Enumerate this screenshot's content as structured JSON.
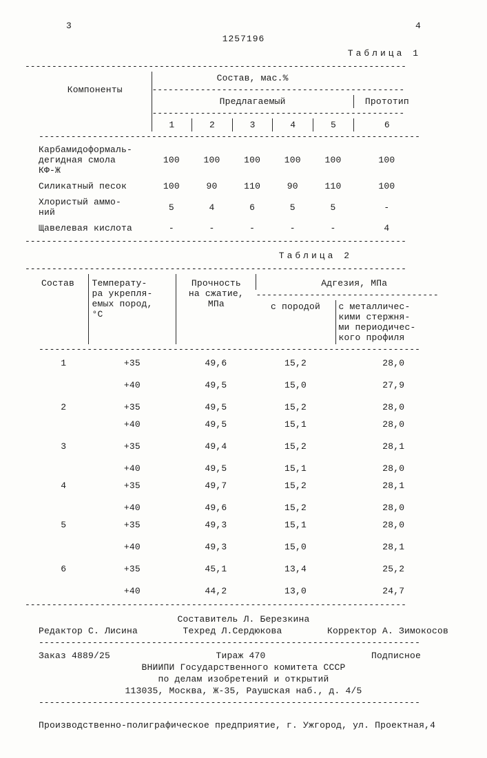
{
  "page_left": "3",
  "page_right": "4",
  "doc_number": "1257196",
  "table1": {
    "caption": "Таблица 1",
    "components_label": "Компоненты",
    "composition_label": "Состав, мас.%",
    "proposed_label": "Предлагаемый",
    "prototype_label": "Прототип",
    "col_nums": [
      "1",
      "2",
      "3",
      "4",
      "5",
      "6"
    ],
    "rows": [
      {
        "label": "Карбамидоформаль-\nдегидная смола\nКФ-Ж",
        "v": [
          "100",
          "100",
          "100",
          "100",
          "100",
          "100"
        ]
      },
      {
        "label": "Силикатный песок",
        "v": [
          "100",
          "90",
          "110",
          "90",
          "110",
          "100"
        ]
      },
      {
        "label": "Хлористый аммо-\nний",
        "v": [
          "5",
          "4",
          "6",
          "5",
          "5",
          "-"
        ]
      },
      {
        "label": "Щавелевая кислота",
        "v": [
          "-",
          "-",
          "-",
          "-",
          "-",
          "4"
        ]
      }
    ]
  },
  "table2": {
    "caption": "Таблица 2",
    "h_sostav": "Состав",
    "h_temp": "Температу-\nра укрепля-\nемых пород,\n°С",
    "h_proch": "Прочность\nна сжатие,\nМПа",
    "h_adg": "Адгезия, МПа",
    "h_adg_a": "с породой",
    "h_adg_b": "с металличес-\nкими стержня-\nми периодичес-\nкого профиля",
    "rows": [
      {
        "n": "1",
        "t": "+35",
        "p": "49,6",
        "a": "15,2",
        "b": "28,0"
      },
      {
        "n": "",
        "t": "+40",
        "p": "49,5",
        "a": "15,0",
        "b": "27,9",
        "gap": true
      },
      {
        "n": "2",
        "t": "+35",
        "p": "49,5",
        "a": "15,2",
        "b": "28,0",
        "gap": true
      },
      {
        "n": "",
        "t": "+40",
        "p": "49,5",
        "a": "15,1",
        "b": "28,0"
      },
      {
        "n": "3",
        "t": "+35",
        "p": "49,4",
        "a": "15,2",
        "b": "28,1",
        "gap": true
      },
      {
        "n": "",
        "t": "+40",
        "p": "49,5",
        "a": "15,1",
        "b": "28,0",
        "gap": true
      },
      {
        "n": "4",
        "t": "+35",
        "p": "49,7",
        "a": "15,2",
        "b": "28,1"
      },
      {
        "n": "",
        "t": "+40",
        "p": "49,6",
        "a": "15,2",
        "b": "28,0",
        "gap": true
      },
      {
        "n": "5",
        "t": "+35",
        "p": "49,3",
        "a": "15,1",
        "b": "28,0"
      },
      {
        "n": "",
        "t": "+40",
        "p": "49,3",
        "a": "15,0",
        "b": "28,1",
        "gap": true
      },
      {
        "n": "6",
        "t": "+35",
        "p": "45,1",
        "a": "13,4",
        "b": "25,2",
        "gap": true
      },
      {
        "n": "",
        "t": "+40",
        "p": "44,2",
        "a": "13,0",
        "b": "24,7",
        "gap": true
      }
    ]
  },
  "footer": {
    "sostavitel": "Составитель Л. Березкина",
    "left": "Редактор С. Лисина",
    "mid": "Техред Л.Сердюкова",
    "right": "Корректор А. Зимокосов",
    "zakaz": "Заказ 4889/25",
    "tirazh": "Тираж 470",
    "podpis": "Подписное",
    "org1": "ВНИИПИ Государственного комитета СССР",
    "org2": "по делам изобретений и открытий",
    "addr": "113035, Москва, Ж-35, Раушская наб., д. 4/5",
    "prod": "Производственно-полиграфическое предприятие, г. Ужгород, ул. Проектная,4"
  }
}
